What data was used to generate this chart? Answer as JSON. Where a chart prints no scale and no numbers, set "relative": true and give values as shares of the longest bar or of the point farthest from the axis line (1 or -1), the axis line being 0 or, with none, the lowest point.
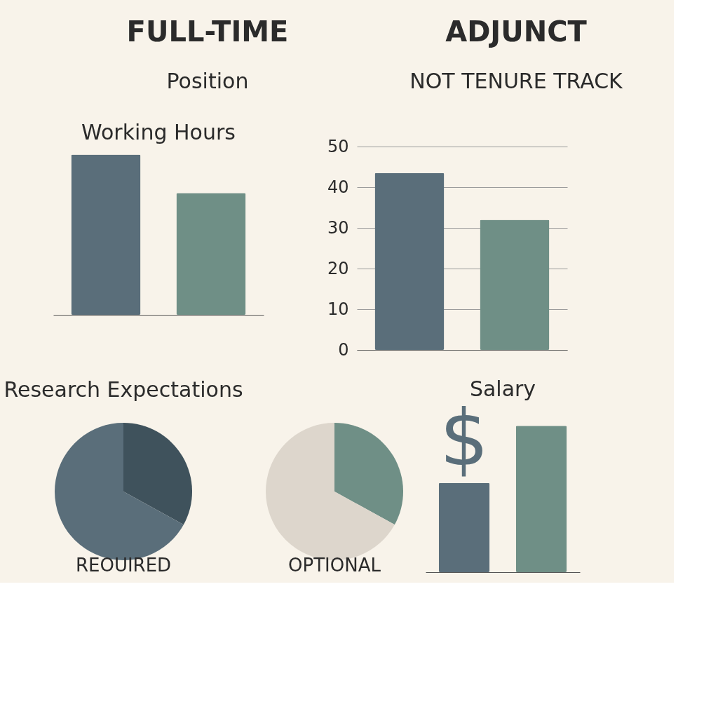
{
  "chart_data": [
    {
      "type": "other",
      "annotations": [
        "FULL-TIME",
        "ADJUNCT",
        "Position",
        "NOT TENURE TRACK"
      ]
    },
    {
      "type": "bar",
      "title": "Working Hours",
      "relative": true,
      "categories": [
        null,
        null
      ],
      "values": [
        1,
        0.76
      ],
      "colors": [
        "#5a6e7a",
        "#6f8f86"
      ]
    },
    {
      "type": "bar",
      "categories": [
        null,
        null
      ],
      "values": [
        43.5,
        32
      ],
      "colors": [
        "#5a6e7a",
        "#6f8f86"
      ],
      "ylim": [
        0,
        50
      ],
      "yticks": [
        0,
        10,
        20,
        30,
        40,
        50
      ],
      "grid": "y"
    },
    {
      "type": "pie",
      "title": "Research Expectations",
      "xlabel": "REOUIRED",
      "categories": [
        null,
        null
      ],
      "values": [
        33,
        67
      ],
      "colors": [
        "#3f525c",
        "#5a6e7a"
      ]
    },
    {
      "type": "pie",
      "xlabel": "OPTIONAL",
      "categories": [
        null,
        null
      ],
      "values": [
        33,
        67
      ],
      "colors": [
        "#6f8f86",
        "#ddd6cc"
      ]
    },
    {
      "type": "bar",
      "title": "Salary",
      "relative": true,
      "annotations": [
        "$"
      ],
      "categories": [
        null,
        null
      ],
      "values": [
        0.61,
        1
      ],
      "colors": [
        "#5a6e7a",
        "#6f8f86"
      ]
    }
  ]
}
